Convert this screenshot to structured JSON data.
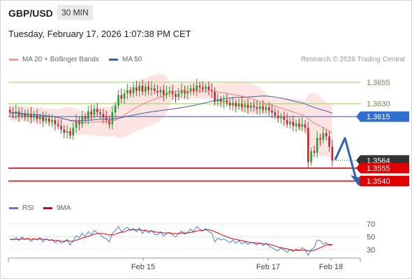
{
  "header": {
    "pair": "GBP/USD",
    "timeframe": "30 MIN",
    "datetime": "Tuesday, February 17, 2026 1:07:38 PM CET"
  },
  "legend": {
    "ma20": "MA 20 + Bollinger Bands",
    "ma50": "MA 50",
    "credit": "Research © 2026 Trading Central",
    "rsi": "RSI",
    "rsi_ma": "9MA"
  },
  "colors": {
    "bull": "#22a032",
    "bear": "#c0282d",
    "ma20": "#e8847a",
    "ma50": "#3f5fa6",
    "band": "#fde0df",
    "resistance": "#b5d98a",
    "pivot": "#2f6fd0",
    "support": "#e00000",
    "current": "#333333",
    "rsi": "#4a7fe0",
    "rsi_ma": "#e00000"
  },
  "chart_data": [
    {
      "type": "candlestick",
      "y_range": [
        1.3525,
        1.3672
      ],
      "x_labels": [
        "Feb 15",
        "Feb 17",
        "Feb 18"
      ],
      "levels": [
        {
          "value": 1.3655,
          "label": "1.3655",
          "kind": "resistance"
        },
        {
          "value": 1.363,
          "label": "1.3630",
          "kind": "resistance"
        },
        {
          "value": 1.3615,
          "label": "1.3615",
          "kind": "pivot"
        },
        {
          "value": 1.3564,
          "label": "1.3564",
          "kind": "current"
        },
        {
          "value": 1.3555,
          "label": "1.3555",
          "kind": "support"
        },
        {
          "value": 1.354,
          "label": "1.3540",
          "kind": "support"
        }
      ],
      "close": [
        1.362,
        1.3618,
        1.3621,
        1.3616,
        1.3619,
        1.3615,
        1.3618,
        1.3614,
        1.3617,
        1.3612,
        1.3615,
        1.361,
        1.3613,
        1.3609,
        1.3611,
        1.3606,
        1.3604,
        1.36,
        1.3596,
        1.3598,
        1.3593,
        1.3602,
        1.361,
        1.3606,
        1.3615,
        1.3612,
        1.3621,
        1.3617,
        1.3624,
        1.362,
        1.3618,
        1.3614,
        1.3611,
        1.3606,
        1.362,
        1.3628,
        1.364,
        1.3636,
        1.3642,
        1.3646,
        1.3642,
        1.3649,
        1.3645,
        1.3651,
        1.3644,
        1.365,
        1.3646,
        1.3648,
        1.3645,
        1.3643,
        1.3646,
        1.364,
        1.3643,
        1.3645,
        1.3641,
        1.3638,
        1.3642,
        1.3646,
        1.3642,
        1.3644,
        1.3648,
        1.3645,
        1.3651,
        1.3649,
        1.3647,
        1.365,
        1.3646,
        1.3644,
        1.3632,
        1.3635,
        1.3632,
        1.3634,
        1.3631,
        1.3628,
        1.3631,
        1.3627,
        1.363,
        1.3626,
        1.3629,
        1.3625,
        1.3628,
        1.3626,
        1.3624,
        1.3627,
        1.3623,
        1.3626,
        1.3622,
        1.362,
        1.3616,
        1.3613,
        1.3615,
        1.3611,
        1.3606,
        1.3609,
        1.3604,
        1.3607,
        1.3603,
        1.3606,
        1.3602,
        1.3562,
        1.3575,
        1.3573,
        1.359,
        1.3588,
        1.3596,
        1.3592,
        1.358,
        1.3564
      ],
      "rsi": {
        "y_ticks": [
          70,
          50,
          30
        ],
        "rsi_values": [
          47,
          45,
          49,
          44,
          50,
          46,
          48,
          43,
          47,
          45,
          49,
          42,
          47,
          44,
          46,
          41,
          45,
          40,
          42,
          46,
          37,
          44,
          52,
          48,
          56,
          50,
          58,
          53,
          60,
          56,
          54,
          49,
          47,
          42,
          55,
          60,
          66,
          58,
          62,
          65,
          60,
          63,
          58,
          64,
          55,
          61,
          56,
          60,
          54,
          53,
          58,
          51,
          55,
          57,
          53,
          50,
          55,
          59,
          54,
          57,
          62,
          58,
          66,
          62,
          59,
          63,
          58,
          56,
          42,
          48,
          45,
          47,
          44,
          41,
          45,
          40,
          44,
          39,
          42,
          38,
          41,
          40,
          37,
          41,
          36,
          40,
          35,
          33,
          30,
          28,
          33,
          29,
          26,
          30,
          27,
          31,
          28,
          33,
          30,
          21,
          30,
          33,
          45,
          44,
          38,
          41,
          36,
          37
        ],
        "ma_values": [
          46,
          46,
          46,
          46,
          47,
          46,
          47,
          46,
          47,
          46,
          47,
          46,
          46,
          45,
          45,
          44,
          44,
          43,
          43,
          44,
          43,
          43,
          45,
          46,
          48,
          49,
          51,
          52,
          54,
          55,
          55,
          55,
          54,
          53,
          53,
          54,
          56,
          57,
          58,
          60,
          61,
          61,
          61,
          61,
          60,
          60,
          59,
          59,
          58,
          57,
          57,
          56,
          56,
          56,
          55,
          55,
          55,
          56,
          56,
          56,
          57,
          58,
          59,
          60,
          60,
          61,
          61,
          60,
          58,
          56,
          54,
          52,
          50,
          48,
          47,
          46,
          45,
          44,
          43,
          42,
          41,
          41,
          40,
          40,
          39,
          39,
          38,
          37,
          36,
          34,
          33,
          32,
          31,
          30,
          29,
          29,
          29,
          29,
          29,
          28,
          28,
          29,
          31,
          33,
          35,
          37,
          38,
          38
        ]
      }
    }
  ]
}
